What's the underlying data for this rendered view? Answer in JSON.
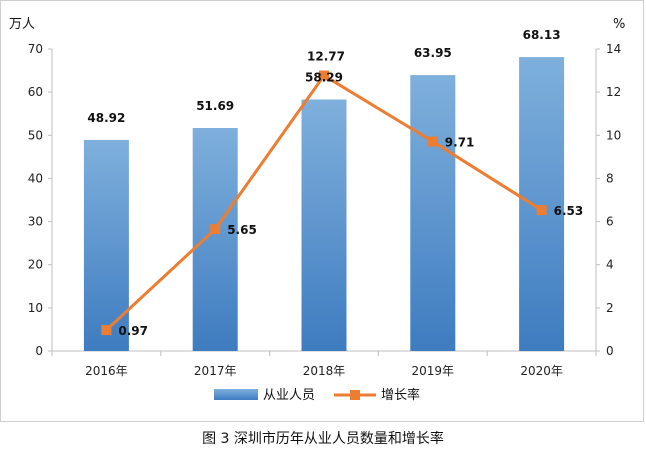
{
  "caption": "图 3 深圳市历年从业人员数量和增长率",
  "colors": {
    "bar_top": "#7fb0dc",
    "bar_bottom": "#3e7cc0",
    "line": "#ed7d31"
  },
  "chart_data": {
    "type": "bar",
    "categories": [
      "2016年",
      "2017年",
      "2018年",
      "2019年",
      "2020年"
    ],
    "series": [
      {
        "name": "从业人员",
        "type": "bar",
        "axis": "left",
        "values": [
          48.92,
          51.69,
          58.29,
          63.95,
          68.13
        ]
      },
      {
        "name": "增长率",
        "type": "line",
        "axis": "right",
        "values": [
          0.97,
          5.65,
          12.77,
          9.71,
          6.53
        ]
      }
    ],
    "ylabel": "万人",
    "y2label": "%",
    "ylim": [
      0,
      70
    ],
    "y2lim": [
      0,
      14
    ],
    "yticks": [
      0,
      10,
      20,
      30,
      40,
      50,
      60,
      70
    ],
    "y2ticks": [
      0,
      2,
      4,
      6,
      8,
      10,
      12,
      14
    ],
    "grid": false,
    "legend": "bottom"
  }
}
